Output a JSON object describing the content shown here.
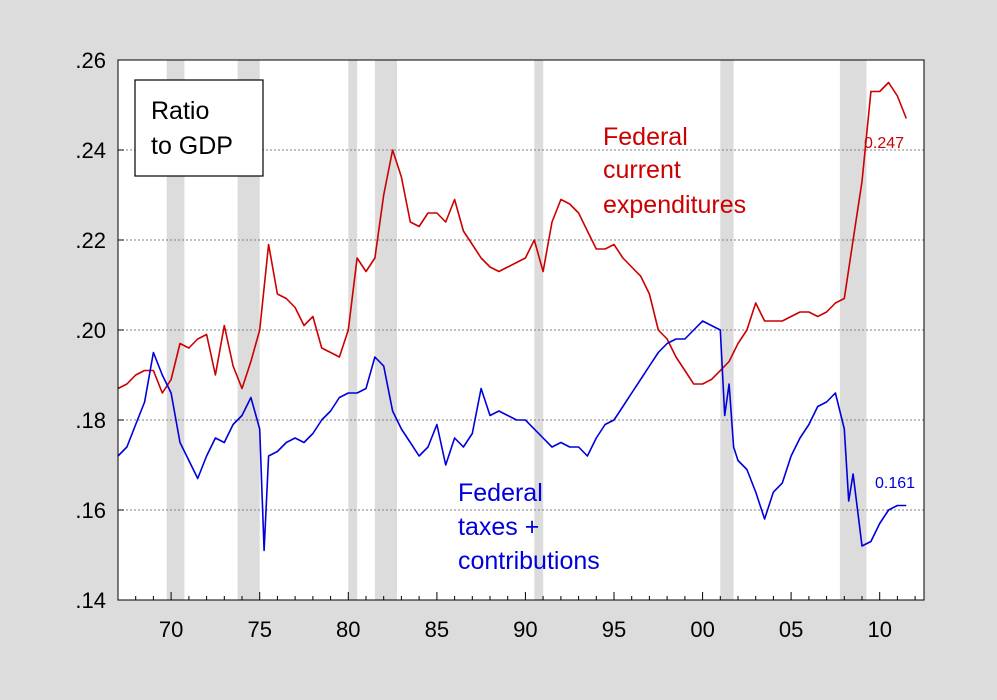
{
  "chart_data": {
    "type": "line",
    "title": "",
    "xlabel": "",
    "ylabel": "",
    "xlim": [
      1967.0,
      2012.5
    ],
    "ylim": [
      0.14,
      0.26
    ],
    "grid": true,
    "colors": {
      "background": "#dcdcdc",
      "plot_area": "#ffffff",
      "recession_shade": "#dcdcdc",
      "gridline": "#808080",
      "expenditures": "#cc0000",
      "taxes": "#0000dd"
    },
    "x_ticks": [
      {
        "value": 1970,
        "label": "70"
      },
      {
        "value": 1975,
        "label": "75"
      },
      {
        "value": 1980,
        "label": "80"
      },
      {
        "value": 1985,
        "label": "85"
      },
      {
        "value": 1990,
        "label": "90"
      },
      {
        "value": 1995,
        "label": "95"
      },
      {
        "value": 2000,
        "label": "00"
      },
      {
        "value": 2005,
        "label": "05"
      },
      {
        "value": 2010,
        "label": "10"
      }
    ],
    "y_ticks": [
      {
        "value": 0.14,
        "label": ".14"
      },
      {
        "value": 0.16,
        "label": ".16"
      },
      {
        "value": 0.18,
        "label": ".18"
      },
      {
        "value": 0.2,
        "label": ".20"
      },
      {
        "value": 0.22,
        "label": ".22"
      },
      {
        "value": 0.24,
        "label": ".24"
      },
      {
        "value": 0.26,
        "label": ".26"
      }
    ],
    "recessions": [
      [
        1969.75,
        1970.75
      ],
      [
        1973.75,
        1975.0
      ],
      [
        1980.0,
        1980.5
      ],
      [
        1981.5,
        1982.75
      ],
      [
        1990.5,
        1991.0
      ],
      [
        2001.0,
        2001.75
      ],
      [
        2007.75,
        2009.25
      ]
    ],
    "legend_box": {
      "line1": "Ratio",
      "line2": "to GDP"
    },
    "annotations": {
      "expenditures": [
        "Federal",
        "current",
        "expenditures"
      ],
      "taxes": [
        "Federal",
        "taxes +",
        "contributions"
      ]
    },
    "end_labels": {
      "expenditures": "0.247",
      "taxes": "0.161"
    },
    "series": [
      {
        "key": "expenditures",
        "x": [
          1967.0,
          1967.5,
          1968.0,
          1968.5,
          1969.0,
          1969.5,
          1970.0,
          1970.5,
          1971.0,
          1971.5,
          1972.0,
          1972.5,
          1973.0,
          1973.5,
          1974.0,
          1974.5,
          1975.0,
          1975.5,
          1976.0,
          1976.5,
          1977.0,
          1977.5,
          1978.0,
          1978.5,
          1979.0,
          1979.5,
          1980.0,
          1980.5,
          1981.0,
          1981.5,
          1982.0,
          1982.5,
          1983.0,
          1983.5,
          1984.0,
          1984.5,
          1985.0,
          1985.5,
          1986.0,
          1986.5,
          1987.0,
          1987.5,
          1988.0,
          1988.5,
          1989.0,
          1989.5,
          1990.0,
          1990.5,
          1991.0,
          1991.5,
          1992.0,
          1992.5,
          1993.0,
          1993.5,
          1994.0,
          1994.5,
          1995.0,
          1995.5,
          1996.0,
          1996.5,
          1997.0,
          1997.5,
          1998.0,
          1998.5,
          1999.0,
          1999.5,
          2000.0,
          2000.5,
          2001.0,
          2001.5,
          2002.0,
          2002.5,
          2003.0,
          2003.5,
          2004.0,
          2004.5,
          2005.0,
          2005.5,
          2006.0,
          2006.5,
          2007.0,
          2007.5,
          2008.0,
          2008.5,
          2009.0,
          2009.5,
          2010.0,
          2010.5,
          2011.0,
          2011.5
        ],
        "y": [
          0.187,
          0.188,
          0.19,
          0.191,
          0.191,
          0.186,
          0.189,
          0.197,
          0.196,
          0.198,
          0.199,
          0.19,
          0.201,
          0.192,
          0.187,
          0.193,
          0.2,
          0.219,
          0.208,
          0.207,
          0.205,
          0.201,
          0.203,
          0.196,
          0.195,
          0.194,
          0.2,
          0.216,
          0.213,
          0.216,
          0.23,
          0.24,
          0.234,
          0.224,
          0.223,
          0.226,
          0.226,
          0.224,
          0.229,
          0.222,
          0.219,
          0.216,
          0.214,
          0.213,
          0.214,
          0.215,
          0.216,
          0.22,
          0.213,
          0.224,
          0.229,
          0.228,
          0.226,
          0.222,
          0.218,
          0.218,
          0.219,
          0.216,
          0.214,
          0.212,
          0.208,
          0.2,
          0.198,
          0.194,
          0.191,
          0.188,
          0.188,
          0.189,
          0.191,
          0.193,
          0.197,
          0.2,
          0.206,
          0.202,
          0.202,
          0.202,
          0.203,
          0.204,
          0.204,
          0.203,
          0.204,
          0.206,
          0.207,
          0.22,
          0.233,
          0.253,
          0.253,
          0.255,
          0.252,
          0.247
        ]
      },
      {
        "key": "taxes",
        "x": [
          1967.0,
          1967.5,
          1968.0,
          1968.5,
          1969.0,
          1969.5,
          1970.0,
          1970.5,
          1971.0,
          1971.5,
          1972.0,
          1972.5,
          1973.0,
          1973.5,
          1974.0,
          1974.5,
          1975.0,
          1975.25,
          1975.5,
          1976.0,
          1976.5,
          1977.0,
          1977.5,
          1978.0,
          1978.5,
          1979.0,
          1979.5,
          1980.0,
          1980.5,
          1981.0,
          1981.5,
          1982.0,
          1982.5,
          1983.0,
          1983.5,
          1984.0,
          1984.5,
          1985.0,
          1985.5,
          1986.0,
          1986.5,
          1987.0,
          1987.5,
          1988.0,
          1988.5,
          1989.0,
          1989.5,
          1990.0,
          1990.5,
          1991.0,
          1991.5,
          1992.0,
          1992.5,
          1993.0,
          1993.5,
          1994.0,
          1994.5,
          1995.0,
          1995.5,
          1996.0,
          1996.5,
          1997.0,
          1997.5,
          1998.0,
          1998.5,
          1999.0,
          1999.5,
          2000.0,
          2000.5,
          2001.0,
          2001.25,
          2001.5,
          2001.75,
          2002.0,
          2002.5,
          2003.0,
          2003.5,
          2004.0,
          2004.5,
          2005.0,
          2005.5,
          2006.0,
          2006.5,
          2007.0,
          2007.5,
          2008.0,
          2008.25,
          2008.5,
          2009.0,
          2009.5,
          2010.0,
          2010.5,
          2011.0,
          2011.5
        ],
        "y": [
          0.172,
          0.174,
          0.179,
          0.184,
          0.195,
          0.19,
          0.186,
          0.175,
          0.171,
          0.167,
          0.172,
          0.176,
          0.175,
          0.179,
          0.181,
          0.185,
          0.178,
          0.151,
          0.172,
          0.173,
          0.175,
          0.176,
          0.175,
          0.177,
          0.18,
          0.182,
          0.185,
          0.186,
          0.186,
          0.187,
          0.194,
          0.192,
          0.182,
          0.178,
          0.175,
          0.172,
          0.174,
          0.179,
          0.17,
          0.176,
          0.174,
          0.177,
          0.187,
          0.181,
          0.182,
          0.181,
          0.18,
          0.18,
          0.178,
          0.176,
          0.174,
          0.175,
          0.174,
          0.174,
          0.172,
          0.176,
          0.179,
          0.18,
          0.183,
          0.186,
          0.189,
          0.192,
          0.195,
          0.197,
          0.198,
          0.198,
          0.2,
          0.202,
          0.201,
          0.2,
          0.181,
          0.188,
          0.174,
          0.171,
          0.169,
          0.164,
          0.158,
          0.164,
          0.166,
          0.172,
          0.176,
          0.179,
          0.183,
          0.184,
          0.186,
          0.178,
          0.162,
          0.168,
          0.152,
          0.153,
          0.157,
          0.16,
          0.161,
          0.161
        ]
      }
    ]
  }
}
